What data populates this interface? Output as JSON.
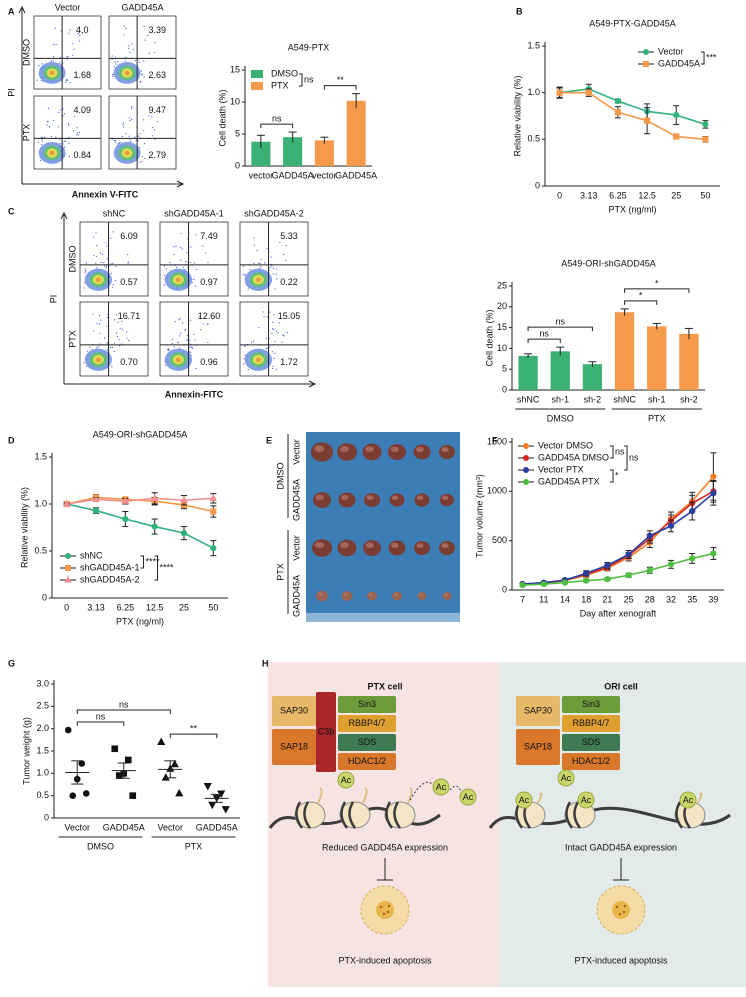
{
  "panel_labels": [
    "A",
    "B",
    "C",
    "D",
    "E",
    "F",
    "G",
    "H"
  ],
  "flow_panels": [
    {
      "columns": [
        "Vector",
        "GADD45A"
      ],
      "rows": [
        "DMSO",
        "PTX"
      ],
      "y_label": "PI",
      "x_label": "Annexin V-FITC",
      "upper_right": [
        [
          "4.0",
          "3.39"
        ],
        [
          "4.09",
          "9.47"
        ]
      ],
      "lower_right": [
        [
          "1.68",
          "2.63"
        ],
        [
          "0.84",
          "2.79"
        ]
      ]
    },
    {
      "columns": [
        "shNC",
        "shGADD45A-1",
        "shGADD45A-2"
      ],
      "rows": [
        "DMSO",
        "PTX"
      ],
      "y_label": "PI",
      "x_label": "Annexin-FITC",
      "upper_right": [
        [
          "6.09",
          "7.49",
          "5.33"
        ],
        [
          "16.71",
          "12.60",
          "15.05"
        ]
      ],
      "lower_right": [
        [
          "0.57",
          "0.97",
          "0.22"
        ],
        [
          "0.70",
          "0.96",
          "1.72"
        ]
      ]
    }
  ],
  "chart_data": [
    {
      "type": "bar",
      "title": "A549-PTX",
      "y_label": "Cell death (%)",
      "categories": [
        "vector",
        "GADD45A",
        "vector",
        "GADD45A"
      ],
      "series": [
        {
          "name": "DMSO",
          "color": "#3bb273",
          "values": [
            3.8,
            4.5,
            null,
            null
          ],
          "errors": [
            1.0,
            0.8,
            null,
            null
          ]
        },
        {
          "name": "PTX",
          "color": "#f5994a",
          "values": [
            null,
            null,
            4.0,
            10.2
          ],
          "errors": [
            null,
            null,
            0.5,
            1.1
          ]
        }
      ],
      "ylim": [
        0,
        15
      ],
      "yticks": [
        0,
        5,
        10,
        15
      ],
      "legend": "upper left",
      "annotations": [
        {
          "text": "ns",
          "between": [
            0,
            1
          ]
        },
        {
          "text": "**",
          "between": [
            2,
            3
          ]
        }
      ]
    },
    {
      "type": "line",
      "title": "A549-PTX-GADD45A",
      "y_label": "Relative viability (%)",
      "x_label": "PTX (ng/ml)",
      "categories": [
        "0",
        "3.13",
        "6.25",
        "12.5",
        "25",
        "50"
      ],
      "series": [
        {
          "name": "Vector",
          "color": "#2fb27c",
          "marker": "circle",
          "values": [
            1.0,
            1.04,
            0.91,
            0.8,
            0.76,
            0.66
          ],
          "errors": [
            0.05,
            0.05,
            0.02,
            0.08,
            0.1,
            0.04
          ]
        },
        {
          "name": "GADD45A",
          "color": "#f5994a",
          "marker": "square",
          "values": [
            1.0,
            1.0,
            0.79,
            0.7,
            0.53,
            0.5
          ],
          "errors": [
            0.06,
            0.04,
            0.06,
            0.14,
            0.02,
            0.03
          ]
        }
      ],
      "ylim": [
        0,
        1.5
      ],
      "yticks": [
        0,
        0.5,
        {
          "value": 1,
          "label": "1.0"
        },
        1.5
      ],
      "legend": "upper right",
      "annotations": [
        {
          "text": "***",
          "between": [
            0,
            1
          ]
        }
      ]
    },
    {
      "type": "bar",
      "title": "A549-ORI-shGADD45A",
      "y_label": "Cell death (%)",
      "categories": [
        "shNC",
        "sh-1",
        "sh-2",
        "shNC",
        "sh-1",
        "sh-2"
      ],
      "series": [
        {
          "color": "#3bb273",
          "values": [
            8.2,
            9.3,
            6.2,
            null,
            null,
            null
          ],
          "errors": [
            0.5,
            1.0,
            0.6,
            null,
            null,
            null
          ]
        },
        {
          "color": "#f5994a",
          "values": [
            null,
            null,
            null,
            18.7,
            15.3,
            13.5
          ],
          "errors": [
            null,
            null,
            null,
            0.8,
            0.7,
            1.3
          ]
        }
      ],
      "ylim": [
        0,
        25
      ],
      "yticks": [
        0,
        5,
        10,
        15,
        20,
        25
      ],
      "groups": [
        {
          "name": "DMSO",
          "span": [
            0,
            2
          ]
        },
        {
          "name": "PTX",
          "span": [
            3,
            5
          ]
        }
      ],
      "annotations": [
        {
          "text": "ns",
          "between": [
            0,
            1
          ]
        },
        {
          "text": "ns",
          "between": [
            0,
            2
          ]
        },
        {
          "text": "*",
          "between": [
            3,
            4
          ]
        },
        {
          "text": "*",
          "between": [
            3,
            5
          ]
        }
      ]
    },
    {
      "type": "line",
      "title": "A549-ORI-shGADD45A",
      "y_label": "Relative viability (%)",
      "x_label": "PTX (ng/ml)",
      "categories": [
        "0",
        "3.13",
        "6.25",
        "12.5",
        "25",
        "50"
      ],
      "series": [
        {
          "name": "shNC",
          "color": "#2fb27c",
          "marker": "circle",
          "values": [
            1.0,
            0.93,
            0.84,
            0.76,
            0.69,
            0.53
          ],
          "errors": [
            0.02,
            0.03,
            0.08,
            0.08,
            0.07,
            0.08
          ]
        },
        {
          "name": "shGADD45A-1",
          "color": "#f5994a",
          "marker": "square",
          "values": [
            1.0,
            1.07,
            1.05,
            1.03,
            0.99,
            0.92
          ],
          "errors": [
            0.01,
            0.03,
            0.02,
            0.04,
            0.04,
            0.06
          ]
        },
        {
          "name": "shGADD45A-2",
          "color": "#f08f8f",
          "marker": "triangle",
          "values": [
            1.0,
            1.05,
            1.03,
            1.06,
            1.04,
            1.06
          ],
          "errors": [
            0.01,
            0.02,
            0.03,
            0.06,
            0.05,
            0.05
          ]
        }
      ],
      "ylim": [
        0,
        1.5
      ],
      "yticks": [
        0,
        0.5,
        {
          "value": 1,
          "label": "1.0"
        },
        1.5
      ],
      "legend": "lower left",
      "annotations": [
        {
          "text": "****",
          "between": [
            0,
            1
          ]
        },
        {
          "text": "****",
          "between": [
            0,
            2
          ]
        }
      ]
    },
    {
      "type": "line",
      "y_label": "Tumor volume (mm³)",
      "x_label": "Day after xenograft",
      "categories": [
        "7",
        "11",
        "14",
        "18",
        "21",
        "25",
        "28",
        "32",
        "35",
        "39"
      ],
      "series": [
        {
          "name": "Vector DMSO",
          "color": "#f07f2a",
          "marker": "circle",
          "values": [
            60,
            70,
            95,
            150,
            220,
            330,
            480,
            720,
            900,
            1150
          ],
          "errors": [
            10,
            10,
            15,
            20,
            25,
            35,
            50,
            70,
            90,
            240
          ]
        },
        {
          "name": "GADD45A DMSO",
          "color": "#d62828",
          "marker": "circle",
          "values": [
            55,
            70,
            100,
            160,
            230,
            350,
            520,
            700,
            880,
            1000
          ],
          "errors": [
            10,
            10,
            15,
            20,
            25,
            30,
            45,
            60,
            80,
            110
          ]
        },
        {
          "name": "Vector PTX",
          "color": "#2b3fa0",
          "marker": "circle",
          "values": [
            60,
            75,
            100,
            170,
            250,
            360,
            550,
            650,
            800,
            980
          ],
          "errors": [
            10,
            10,
            15,
            25,
            30,
            40,
            50,
            60,
            90,
            120
          ]
        },
        {
          "name": "GADD45A PTX",
          "color": "#4fbf3f",
          "marker": "circle",
          "values": [
            50,
            60,
            75,
            95,
            110,
            150,
            200,
            260,
            320,
            370
          ],
          "errors": [
            8,
            8,
            10,
            12,
            15,
            20,
            30,
            40,
            50,
            60
          ]
        }
      ],
      "ylim": [
        0,
        1500
      ],
      "yticks": [
        0,
        500,
        1000,
        1500
      ],
      "legend": "upper left",
      "annotations": [
        {
          "text": "ns",
          "between": [
            0,
            1
          ]
        },
        {
          "text": "ns",
          "between": [
            0,
            2
          ]
        },
        {
          "text": "*",
          "between": [
            2,
            3
          ]
        }
      ]
    },
    {
      "type": "dot",
      "y_label": "Tumor weight (g)",
      "categories": [
        "Vector",
        "GADD45A",
        "Vector",
        "GADD45A"
      ],
      "values": [
        [
          1.97,
          1.22,
          0.87,
          0.5,
          0.55
        ],
        [
          1.55,
          1.3,
          1.0,
          0.95,
          0.5
        ],
        [
          1.7,
          1.2,
          1.1,
          0.9,
          0.55
        ],
        [
          0.72,
          0.55,
          0.45,
          0.3,
          0.2
        ]
      ],
      "means": [
        1.02,
        1.06,
        1.09,
        0.44
      ],
      "errors": [
        0.26,
        0.17,
        0.19,
        0.09
      ],
      "markers": [
        "circle",
        "square",
        "triangle",
        "triangle-down"
      ],
      "color": "#111111",
      "ylim": [
        0,
        3
      ],
      "yticks": [
        0,
        0.5,
        {
          "value": 1,
          "label": "1.0"
        },
        1.5,
        {
          "value": 2,
          "label": "2.0"
        },
        2.5,
        {
          "value": 3,
          "label": "3.0"
        }
      ],
      "groups": [
        {
          "name": "DMSO",
          "span": [
            0,
            1
          ]
        },
        {
          "name": "PTX",
          "span": [
            2,
            3
          ]
        }
      ],
      "annotations": [
        {
          "text": "ns",
          "between": [
            0,
            1
          ]
        },
        {
          "text": "ns",
          "between": [
            0,
            2
          ]
        },
        {
          "text": "**",
          "between": [
            2,
            3
          ]
        }
      ]
    }
  ],
  "photo": {
    "groups": [
      {
        "name": "DMSO",
        "rows": [
          "Vector",
          "GADD45A"
        ]
      },
      {
        "name": "PTX",
        "rows": [
          "Vector",
          "GADD45A"
        ]
      }
    ]
  },
  "diagram": {
    "left": {
      "title": "PTX cell",
      "proteins": [
        "SAP30",
        "SAP18",
        "C3b",
        "Sin3",
        "RBBP4/7",
        "SDS",
        "HDAC1/2"
      ],
      "mark": "Ac",
      "expression": "Reduced GADD45A expression",
      "outcome": "PTX-induced apoptosis"
    },
    "right": {
      "title": "ORI cell",
      "proteins": [
        "SAP30",
        "SAP18",
        "Sin3",
        "RBBP4/7",
        "SDS",
        "HDAC1/2"
      ],
      "mark": "Ac",
      "expression": "Intact GADD45A expression",
      "outcome": "PTX-induced apoptosis"
    }
  }
}
